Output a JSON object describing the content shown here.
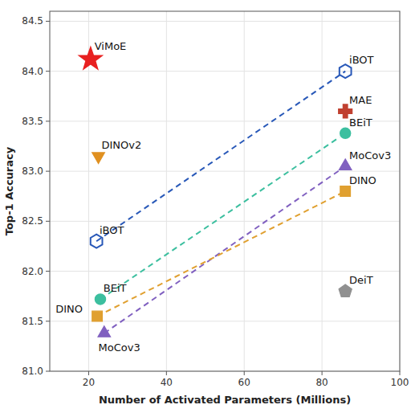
{
  "chart_data": {
    "type": "scatter",
    "xlabel": "Number of Activated Parameters (Millions)",
    "ylabel": "Top-1 Accuracy",
    "xlim": [
      10,
      100
    ],
    "ylim": [
      81.0,
      84.6
    ],
    "xticks": [
      20,
      40,
      60,
      80,
      100
    ],
    "yticks": [
      {
        "value": 81.0,
        "label": "81.0"
      },
      81.5,
      {
        "value": 82.0,
        "label": "82.0"
      },
      82.5,
      {
        "value": 83.0,
        "label": "83.0"
      },
      83.5,
      {
        "value": 84.0,
        "label": "84.0"
      },
      84.5
    ],
    "grid": true,
    "points": [
      {
        "x": 20.5,
        "y": 84.12,
        "marker": "star",
        "color": "#e82020"
      },
      {
        "x": 22.5,
        "y": 83.15,
        "marker": "triangle-down",
        "color": "#e09020"
      },
      {
        "x": 22.0,
        "y": 82.3,
        "marker": "hexagon-open",
        "color": "#2858b8"
      },
      {
        "x": 23.0,
        "y": 81.72,
        "marker": "circle",
        "color": "#3cbf9f"
      },
      {
        "x": 22.2,
        "y": 81.55,
        "marker": "square",
        "color": "#e0a030"
      },
      {
        "x": 24.0,
        "y": 81.38,
        "marker": "triangle-up",
        "color": "#8060c0"
      },
      {
        "x": 86.0,
        "y": 84.0,
        "marker": "hexagon-open",
        "color": "#2858b8"
      },
      {
        "x": 86.0,
        "y": 83.6,
        "marker": "plus",
        "color": "#c04030"
      },
      {
        "x": 86.0,
        "y": 83.38,
        "marker": "circle",
        "color": "#3cbf9f"
      },
      {
        "x": 86.0,
        "y": 83.05,
        "marker": "triangle-up",
        "color": "#8060c0"
      },
      {
        "x": 86.0,
        "y": 82.8,
        "marker": "square",
        "color": "#e0a030"
      },
      {
        "x": 86.0,
        "y": 81.8,
        "marker": "pentagon",
        "color": "#909090"
      }
    ],
    "lines": [
      {
        "x": [
          22.0,
          86.0
        ],
        "y": [
          82.3,
          84.0
        ],
        "color": "#2858b8",
        "line_style": "dashed"
      },
      {
        "x": [
          23.0,
          86.0
        ],
        "y": [
          81.72,
          83.38
        ],
        "color": "#3cbf9f",
        "line_style": "dashed"
      },
      {
        "x": [
          24.0,
          86.0
        ],
        "y": [
          81.38,
          83.05
        ],
        "color": "#8060c0",
        "line_style": "dashed"
      },
      {
        "x": [
          22.2,
          86.0
        ],
        "y": [
          81.55,
          82.8
        ],
        "color": "#e0a030",
        "line_style": "dashed"
      }
    ],
    "annotations": [
      {
        "text": "ViMoE",
        "x": 21.5,
        "y": 84.19
      },
      {
        "text": "DINOv2",
        "x": 23.3,
        "y": 83.2
      },
      {
        "text": "iBOT",
        "x": 22.8,
        "y": 82.35
      },
      {
        "text": "BEiT",
        "x": 23.8,
        "y": 81.77
      },
      {
        "text": "DINO",
        "x": 11.5,
        "y": 81.56
      },
      {
        "text": "MoCov3",
        "x": 22.5,
        "y": 81.18
      },
      {
        "text": "iBOT",
        "x": 87.0,
        "y": 84.05
      },
      {
        "text": "MAE",
        "x": 87.0,
        "y": 83.65
      },
      {
        "text": "BEiT",
        "x": 87.0,
        "y": 83.43
      },
      {
        "text": "MoCov3",
        "x": 87.0,
        "y": 83.1
      },
      {
        "text": "DINO",
        "x": 87.0,
        "y": 82.85
      },
      {
        "text": "DeiT",
        "x": 87.0,
        "y": 81.85
      }
    ]
  }
}
